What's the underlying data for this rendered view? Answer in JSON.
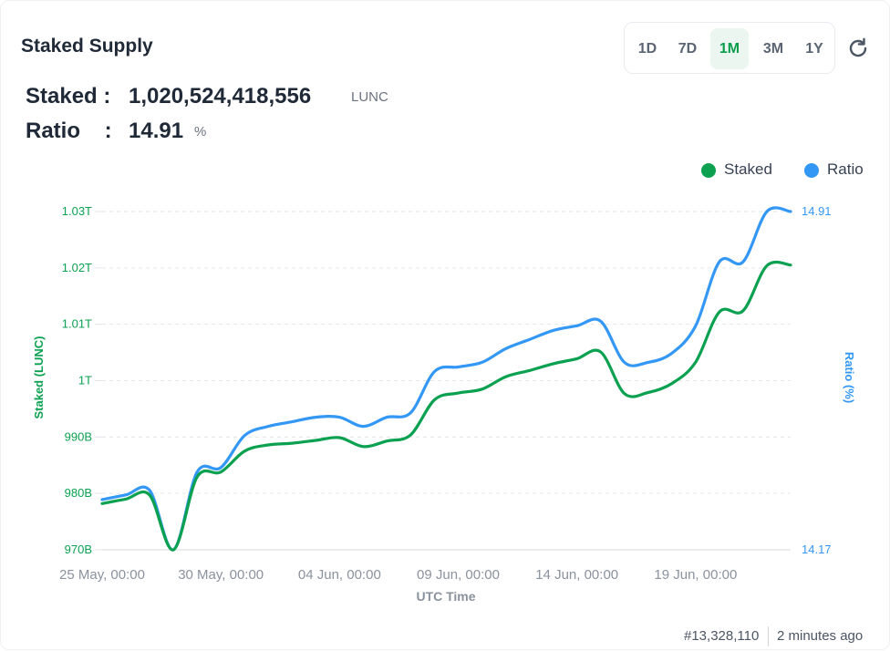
{
  "header": {
    "title": "Staked Supply",
    "ranges": [
      "1D",
      "7D",
      "1M",
      "3M",
      "1Y"
    ],
    "active_range": "1M",
    "refresh_icon": "refresh-icon"
  },
  "stats": {
    "staked_label": "Staked :",
    "staked_value": "1,020,524,418,556",
    "staked_unit": "LUNC",
    "ratio_label": "Ratio    :",
    "ratio_value": "14.91",
    "ratio_unit": "%"
  },
  "colors": {
    "staked": "#0ba150",
    "ratio": "#3397f5",
    "grid": "#e3e6ea",
    "axis_text": "#8a929e"
  },
  "footer": {
    "block": "#13,328,110",
    "updated": "2 minutes ago"
  },
  "chart_data": {
    "type": "line",
    "xlabel": "UTC Time",
    "ylabel": "Staked (LUNC)",
    "y2label": "Ratio (%)",
    "legend": [
      "Staked",
      "Ratio"
    ],
    "legend_position": "top-right",
    "grid": true,
    "x_range": [
      "2024-05-25",
      "2024-06-23"
    ],
    "x_ticks": [
      "25 May, 00:00",
      "30 May, 00:00",
      "04 Jun, 00:00",
      "09 Jun, 00:00",
      "14 Jun, 00:00",
      "19 Jun, 00:00"
    ],
    "ylim": [
      970,
      1030
    ],
    "y_ticks": [
      "970B",
      "980B",
      "990B",
      "1T",
      "1.01T",
      "1.02T",
      "1.03T"
    ],
    "y2lim": [
      14.17,
      14.91
    ],
    "y2_ticks": [
      "14.17",
      "14.91"
    ],
    "series": [
      {
        "name": "Staked",
        "axis": "left",
        "unit": "billion LUNC",
        "x": [
          "2024-05-25",
          "2024-05-26",
          "2024-05-27",
          "2024-05-28",
          "2024-05-29",
          "2024-05-30",
          "2024-05-31",
          "2024-06-01",
          "2024-06-02",
          "2024-06-03",
          "2024-06-04",
          "2024-06-05",
          "2024-06-06",
          "2024-06-07",
          "2024-06-08",
          "2024-06-09",
          "2024-06-10",
          "2024-06-11",
          "2024-06-12",
          "2024-06-13",
          "2024-06-14",
          "2024-06-15",
          "2024-06-16",
          "2024-06-17",
          "2024-06-18",
          "2024-06-19",
          "2024-06-20",
          "2024-06-21",
          "2024-06-22",
          "2024-06-23"
        ],
        "values": [
          978.2,
          979.0,
          979.7,
          970.0,
          982.9,
          983.8,
          987.5,
          988.6,
          988.9,
          989.4,
          989.9,
          988.3,
          989.3,
          990.4,
          996.6,
          997.8,
          998.5,
          1000.7,
          1001.8,
          1003.0,
          1003.9,
          1005.1,
          997.7,
          997.9,
          999.5,
          1003.3,
          1012.2,
          1012.4,
          1020.4,
          1020.5
        ]
      },
      {
        "name": "Ratio",
        "axis": "right",
        "unit": "%",
        "x": [
          "2024-05-25",
          "2024-05-26",
          "2024-05-27",
          "2024-05-28",
          "2024-05-29",
          "2024-05-30",
          "2024-05-31",
          "2024-06-01",
          "2024-06-02",
          "2024-06-03",
          "2024-06-04",
          "2024-06-05",
          "2024-06-06",
          "2024-06-07",
          "2024-06-08",
          "2024-06-09",
          "2024-06-10",
          "2024-06-11",
          "2024-06-12",
          "2024-06-13",
          "2024-06-14",
          "2024-06-15",
          "2024-06-16",
          "2024-06-17",
          "2024-06-18",
          "2024-06-19",
          "2024-06-20",
          "2024-06-21",
          "2024-06-22",
          "2024-06-23"
        ],
        "values": [
          14.28,
          14.29,
          14.3,
          14.17,
          14.34,
          14.35,
          14.42,
          14.44,
          14.45,
          14.46,
          14.46,
          14.44,
          14.46,
          14.47,
          14.56,
          14.57,
          14.58,
          14.61,
          14.63,
          14.65,
          14.66,
          14.67,
          14.58,
          14.58,
          14.6,
          14.66,
          14.8,
          14.8,
          14.91,
          14.91
        ]
      }
    ]
  }
}
